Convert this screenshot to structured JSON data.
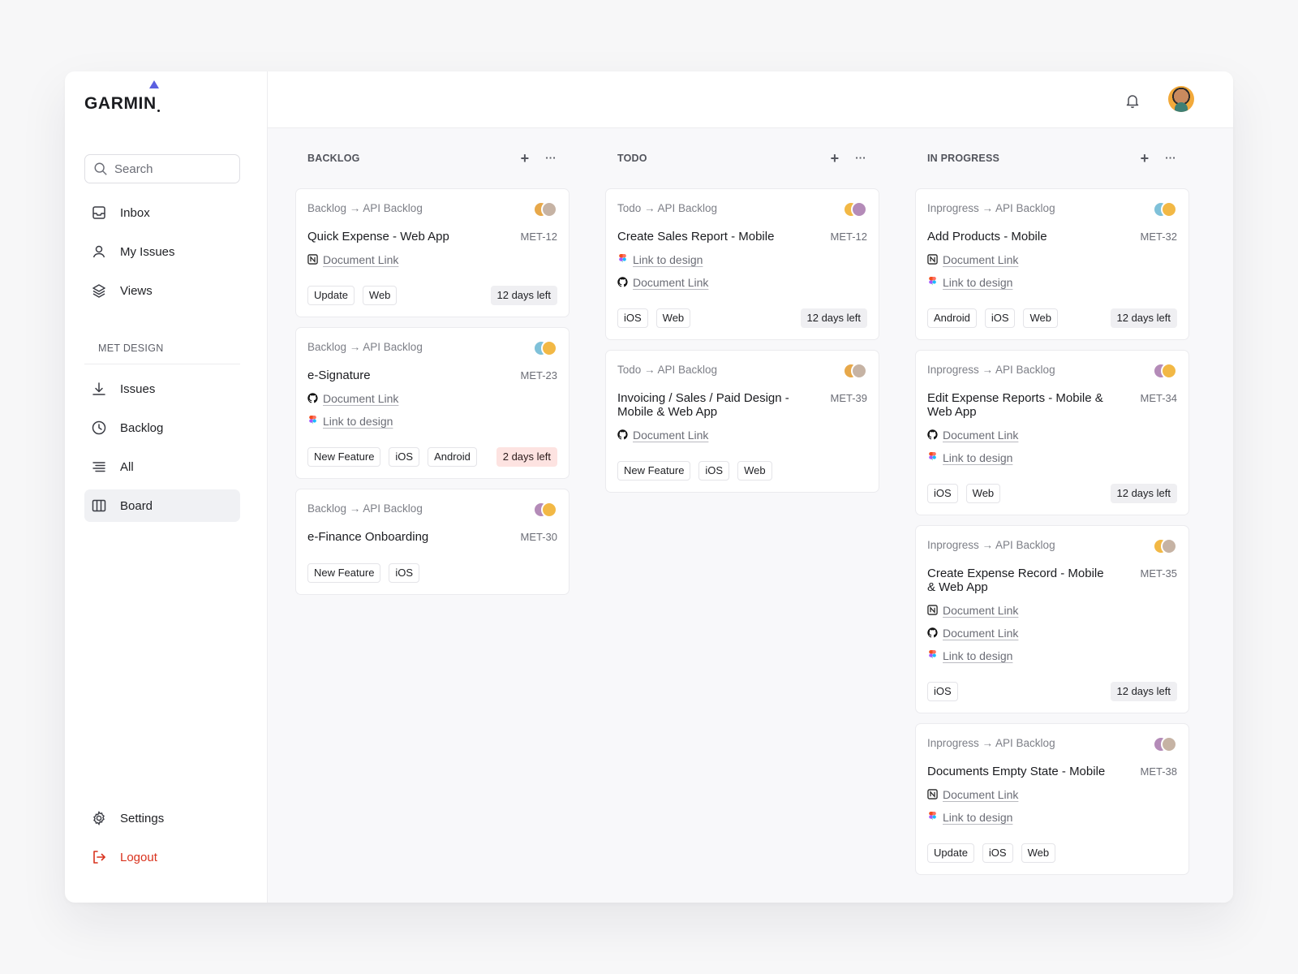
{
  "brand": {
    "logo_text": "GARMIN",
    "accent": "#5b5fe0"
  },
  "search": {
    "placeholder": "Search"
  },
  "nav_primary": [
    {
      "label": "Inbox",
      "icon": "inbox-icon"
    },
    {
      "label": "My Issues",
      "icon": "user-icon"
    },
    {
      "label": "Views",
      "icon": "layers-icon"
    }
  ],
  "section": {
    "label": "MET DESIGN"
  },
  "nav_secondary": [
    {
      "label": "Issues",
      "icon": "download-icon"
    },
    {
      "label": "Backlog",
      "icon": "clock-icon"
    },
    {
      "label": "All",
      "icon": "list-icon"
    },
    {
      "label": "Board",
      "icon": "columns-icon",
      "active": true
    }
  ],
  "footer_nav": {
    "settings": "Settings",
    "logout": "Logout"
  },
  "columns": [
    {
      "title": "BACKLOG",
      "cards": [
        {
          "crumb": "Backlog → API Backlog",
          "title": "Quick Expense - Web App",
          "id": "MET-12",
          "links": [
            {
              "icon": "notion-icon",
              "label": "Document Link"
            }
          ],
          "tags": [
            "Update",
            "Web"
          ],
          "due": "12 days left",
          "urgent": false
        },
        {
          "crumb": "Backlog → API Backlog",
          "title": "e-Signature",
          "id": "MET-23",
          "links": [
            {
              "icon": "github-icon",
              "label": "Document Link"
            },
            {
              "icon": "figma-icon",
              "label": "Link to design"
            }
          ],
          "tags": [
            "New Feature",
            "iOS",
            "Android"
          ],
          "due": "2 days left",
          "urgent": true
        },
        {
          "crumb": "Backlog → API Backlog",
          "title": "e-Finance Onboarding",
          "id": "MET-30",
          "links": [],
          "tags": [
            "New Feature",
            "iOS"
          ],
          "due": "",
          "urgent": false
        }
      ]
    },
    {
      "title": "TODO",
      "cards": [
        {
          "crumb": "Todo → API Backlog",
          "title": "Create Sales Report - Mobile",
          "id": "MET-12",
          "links": [
            {
              "icon": "figma-icon",
              "label": "Link to design"
            },
            {
              "icon": "github-icon",
              "label": "Document Link"
            }
          ],
          "tags": [
            "iOS",
            "Web"
          ],
          "due": "12 days left",
          "urgent": false
        },
        {
          "crumb": "Todo → API Backlog",
          "title": "Invoicing / Sales / Paid Design - Mobile & Web App",
          "id": "MET-39",
          "links": [
            {
              "icon": "github-icon",
              "label": "Document Link"
            }
          ],
          "tags": [
            "New Feature",
            "iOS",
            "Web"
          ],
          "due": "",
          "urgent": false
        }
      ]
    },
    {
      "title": "IN PROGRESS",
      "cards": [
        {
          "crumb": "Inprogress → API Backlog",
          "title": "Add Products - Mobile",
          "id": "MET-32",
          "links": [
            {
              "icon": "notion-icon",
              "label": "Document Link"
            },
            {
              "icon": "figma-icon",
              "label": "Link to design"
            }
          ],
          "tags": [
            "Android",
            "iOS",
            "Web"
          ],
          "due": "12 days left",
          "urgent": false
        },
        {
          "crumb": "Inprogress → API Backlog",
          "title": "Edit Expense Reports - Mobile & Web App",
          "id": "MET-34",
          "links": [
            {
              "icon": "github-icon",
              "label": "Document Link"
            },
            {
              "icon": "figma-icon",
              "label": "Link to design"
            }
          ],
          "tags": [
            "iOS",
            "Web"
          ],
          "due": "12 days left",
          "urgent": false
        },
        {
          "crumb": "Inprogress → API Backlog",
          "title": "Create Expense Record - Mobile & Web App",
          "id": "MET-35",
          "links": [
            {
              "icon": "notion-icon",
              "label": "Document Link"
            },
            {
              "icon": "github-icon",
              "label": "Document Link"
            },
            {
              "icon": "figma-icon",
              "label": "Link to design"
            }
          ],
          "tags": [
            "iOS"
          ],
          "due": "12 days left",
          "urgent": false
        },
        {
          "crumb": "Inprogress → API Backlog",
          "title": "Documents Empty State - Mobile",
          "id": "MET-38",
          "links": [
            {
              "icon": "notion-icon",
              "label": "Document Link"
            },
            {
              "icon": "figma-icon",
              "label": "Link to design"
            }
          ],
          "tags": [
            "Update",
            "iOS",
            "Web"
          ],
          "due": "",
          "urgent": false
        }
      ]
    }
  ],
  "colors": {
    "urgent_bg": "#fde3e1",
    "due_bg": "#efeff2",
    "logout": "#d9321d"
  }
}
